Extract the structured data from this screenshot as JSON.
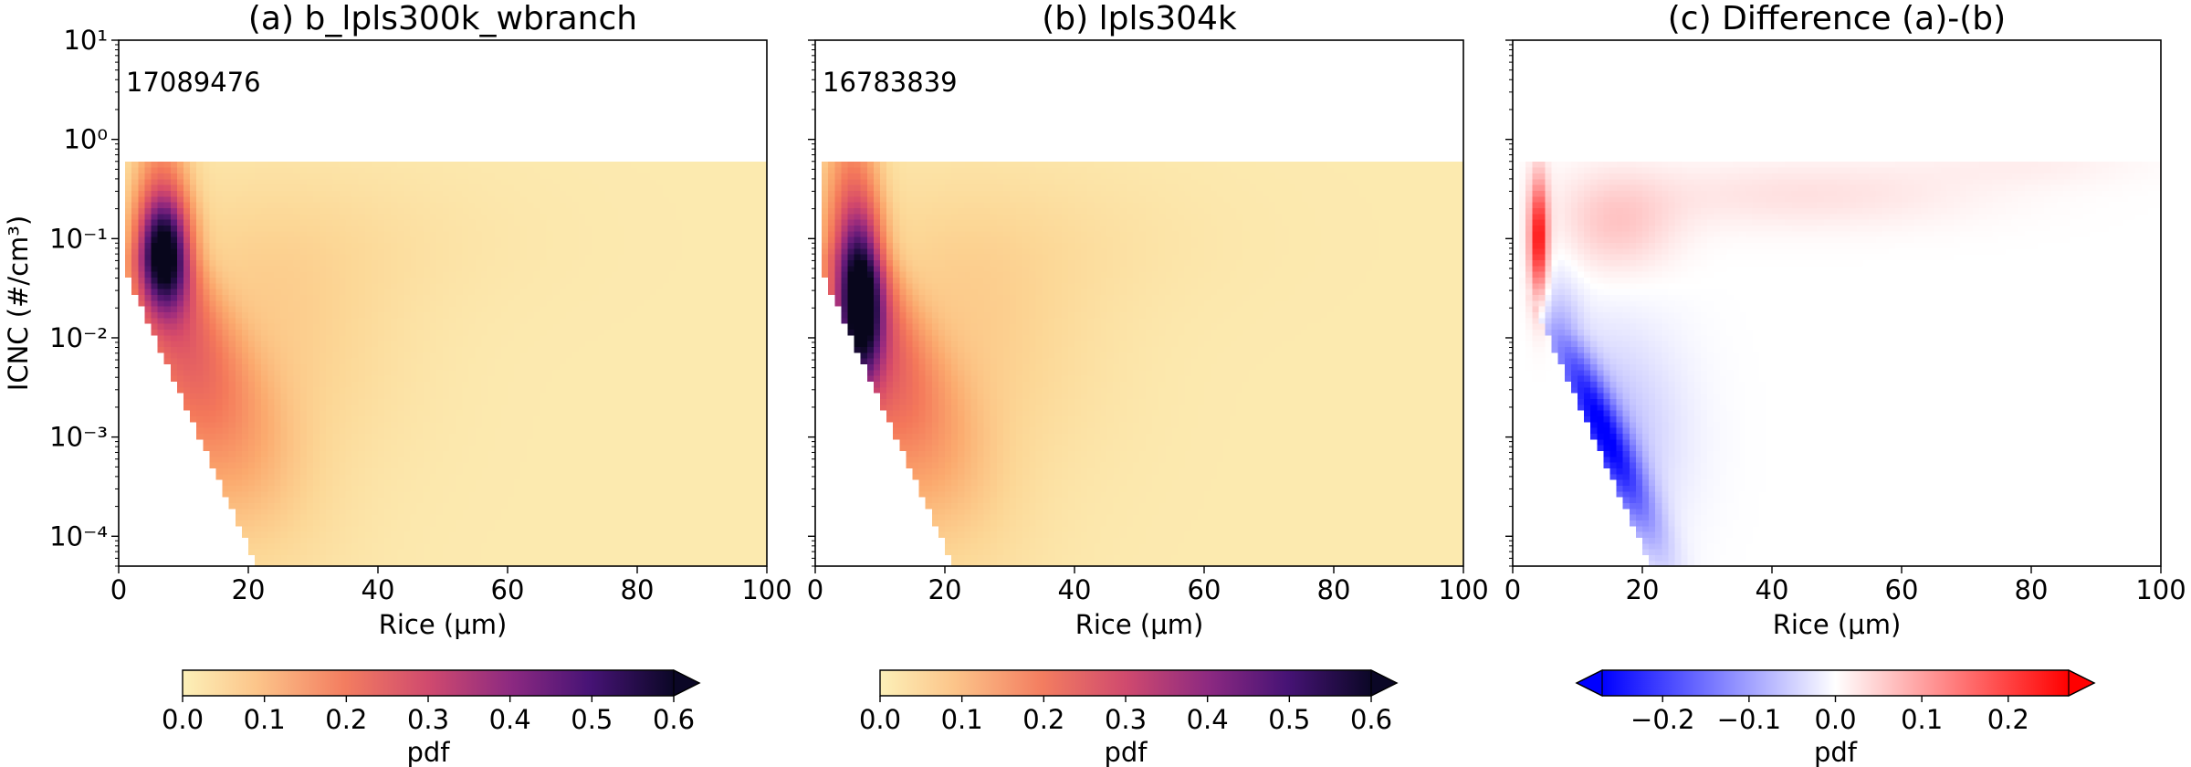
{
  "figure": {
    "ylabel": "ICNC (#/cm³)",
    "xlabel": "Rice (μm)",
    "ytick_labels": [
      "10¹",
      "10⁰",
      "10⁻¹",
      "10⁻²",
      "10⁻³",
      "10⁻⁴"
    ],
    "xtick_labels": [
      "0",
      "20",
      "40",
      "60",
      "80",
      "100"
    ]
  },
  "chart_data": [
    {
      "type": "heatmap",
      "title": "(a) b_lpls300k_wbranch",
      "annotation": "17089476",
      "xlabel": "Rice (μm)",
      "ylabel": "ICNC (#/cm³)",
      "xlim": [
        0,
        100
      ],
      "ylim": [
        5e-05,
        10
      ],
      "yscale": "log",
      "colormap": "magma_r",
      "colorbar": {
        "label": "pdf",
        "ticks": [
          "0.0",
          "0.1",
          "0.2",
          "0.3",
          "0.4",
          "0.5",
          "0.6"
        ],
        "range": [
          0,
          0.6
        ],
        "extend": "max"
      },
      "peak": {
        "rice": 7,
        "icnc": 0.07,
        "pdf": 0.48
      },
      "icnc_upper_cutoff": 0.6
    },
    {
      "type": "heatmap",
      "title": "(b) lpls304k",
      "annotation": "16783839",
      "xlabel": "Rice (μm)",
      "xlim": [
        0,
        100
      ],
      "ylim": [
        5e-05,
        10
      ],
      "yscale": "log",
      "colormap": "magma_r",
      "colorbar": {
        "label": "pdf",
        "ticks": [
          "0.0",
          "0.1",
          "0.2",
          "0.3",
          "0.4",
          "0.5",
          "0.6"
        ],
        "range": [
          0,
          0.6
        ],
        "extend": "max"
      },
      "peak": {
        "rice": 7,
        "icnc": 0.02,
        "pdf": 0.5
      },
      "icnc_upper_cutoff": 0.6
    },
    {
      "type": "heatmap",
      "title": "(c) Difference (a)-(b)",
      "xlabel": "Rice (μm)",
      "xlim": [
        0,
        100
      ],
      "ylim": [
        5e-05,
        10
      ],
      "yscale": "log",
      "colormap": "bwr",
      "colorbar": {
        "label": "pdf",
        "ticks": [
          "−0.2",
          "−0.1",
          "0.0",
          "0.1",
          "0.2"
        ],
        "range": [
          -0.27,
          0.27
        ],
        "extend": "both"
      },
      "features": [
        {
          "sign": "positive",
          "rice": 4,
          "icnc": 0.1,
          "value": 0.25
        },
        {
          "sign": "positive",
          "rice": 15,
          "icnc": 0.15,
          "value": 0.05
        },
        {
          "sign": "negative",
          "rice": 8,
          "icnc": 0.002,
          "value": -0.2
        }
      ]
    }
  ]
}
